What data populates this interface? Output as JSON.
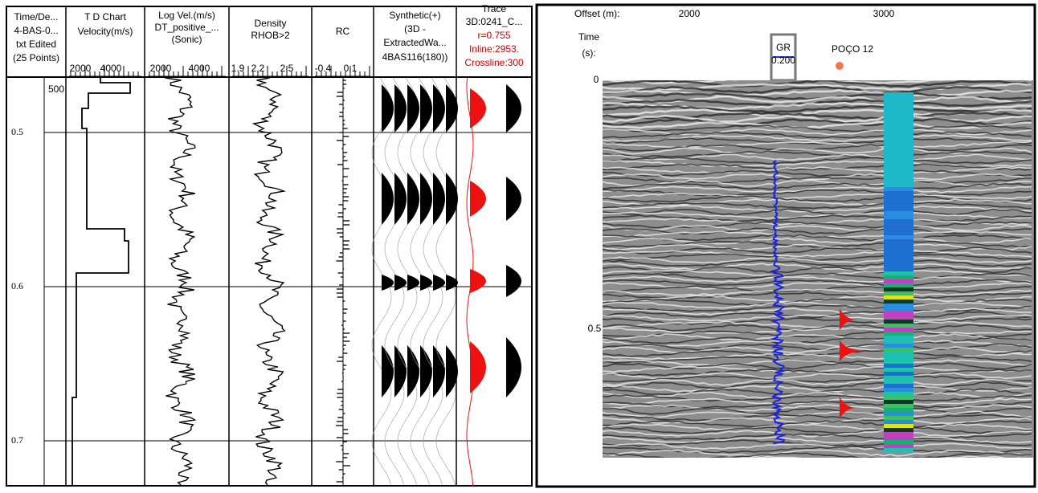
{
  "log_panel": {
    "time_header": [
      "Time/De...",
      "4-BAS-0...",
      "txt  Edited",
      "(25 Points)"
    ],
    "depth_label": "500",
    "time_labels": [
      "0.5",
      "0.6",
      "0.7"
    ],
    "tracks": [
      {
        "header": [
          "T D Chart",
          "Velocity(m/s)"
        ],
        "scale": [
          "2000",
          "4000"
        ]
      },
      {
        "header": [
          "Log Vel.(m/s)",
          "DT_positive_...",
          "(Sonic)"
        ],
        "scale": [
          "2000",
          "4000"
        ]
      },
      {
        "header": [
          "Density",
          "RHOB>2"
        ],
        "scale": [
          "1.9",
          "2.2",
          "2.5"
        ]
      },
      {
        "header": [
          "RC"
        ],
        "scale": [
          "-0.4",
          "0.1"
        ]
      },
      {
        "header": [
          "Synthetic(+)",
          "(3D -",
          "ExtractedWa...",
          "4BAS116(180))"
        ]
      },
      {
        "header": [
          "Trace",
          "3D:0241_C..."
        ],
        "stats": [
          "r=0.755",
          "Inline:2953.",
          "Crossline:300"
        ]
      }
    ]
  },
  "section_panel": {
    "offset_label": "Offset (m):",
    "offset_ticks": [
      "2000",
      "3000"
    ],
    "time_label": [
      "Time",
      "(s):"
    ],
    "time_ticks": [
      "0",
      "0.5"
    ],
    "log_name": "GR",
    "log_sub": "0.200",
    "well_name": "POÇO 12"
  }
}
